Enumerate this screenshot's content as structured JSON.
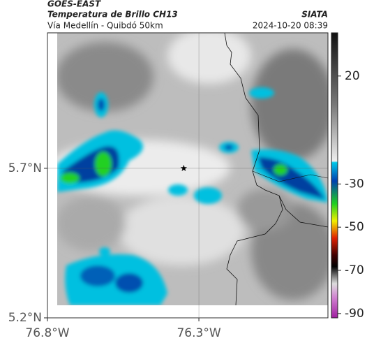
{
  "header": {
    "product": "GOES-EAST",
    "title": "Temperatura de Brillo CH13",
    "subtitle": "Vía Medellín - Quibdó 50km",
    "source": "SIATA",
    "timestamp": "2024-10-20 08:39"
  },
  "map": {
    "xlim": [
      -76.8,
      -75.874
    ],
    "ylim": [
      5.2,
      6.153
    ],
    "xticks": [
      {
        "value": -76.8,
        "label": "76.8°W"
      },
      {
        "value": -76.3,
        "label": "76.3°W"
      }
    ],
    "yticks": [
      {
        "value": 5.2,
        "label": "5.2°N"
      },
      {
        "value": 5.7,
        "label": "5.7°N"
      }
    ],
    "marker": {
      "lon": -76.35,
      "lat": 5.7
    }
  },
  "colorbar": {
    "lim": [
      -92,
      40
    ],
    "ticks": [
      20,
      -30,
      -50,
      -70,
      -90
    ]
  }
}
